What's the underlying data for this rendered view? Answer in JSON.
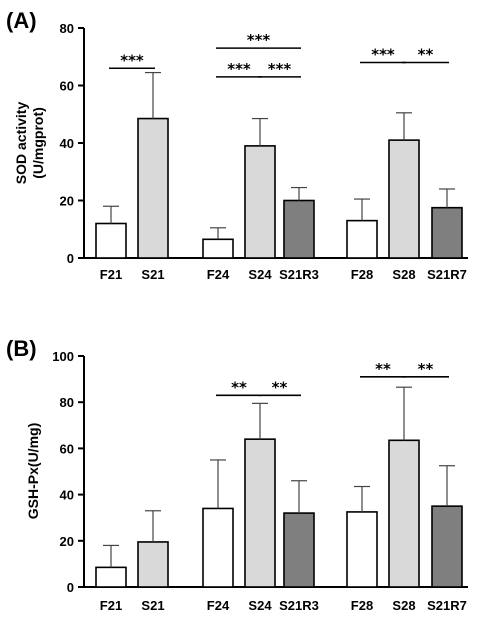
{
  "chart_data": [
    {
      "type": "bar",
      "panel_label": "(A)",
      "ylabel": "SOD activity (U/mgprot)",
      "ylabel_lines": [
        "SOD activity",
        "(U/mgprot)"
      ],
      "ylim": [
        0,
        80
      ],
      "yticks": [
        "0",
        "20",
        "40",
        "60",
        "80"
      ],
      "categories": [
        "F21",
        "S21",
        "F24",
        "S24",
        "S21R3",
        "F28",
        "S28",
        "S21R7"
      ],
      "values": [
        12,
        48.5,
        6.5,
        39,
        20,
        13,
        41,
        17.5
      ],
      "errors": [
        6,
        16,
        4,
        9.5,
        4.5,
        7.5,
        9.5,
        6.5
      ],
      "bar_colors": [
        "#ffffff",
        "#d9d9d9",
        "#ffffff",
        "#d9d9d9",
        "#7f7f7f",
        "#ffffff",
        "#d9d9d9",
        "#7f7f7f"
      ],
      "significance": [
        {
          "from": 0,
          "to": 1,
          "label": "***",
          "y": 66
        },
        {
          "from": 2,
          "to": 4,
          "label": "***",
          "y": 73
        },
        {
          "from": 2,
          "to": 3,
          "label": "***",
          "y": 63
        },
        {
          "from": 3,
          "to": 4,
          "label": "***",
          "y": 63
        },
        {
          "from": 5,
          "to": 6,
          "label": "***",
          "y": 68
        },
        {
          "from": 6,
          "to": 7,
          "label": "**",
          "y": 68
        }
      ]
    },
    {
      "type": "bar",
      "panel_label": "(B)",
      "ylabel": "GSH-Px(U/mg)",
      "ylabel_lines": [
        "GSH-Px(U/mg)"
      ],
      "ylim": [
        0,
        100
      ],
      "yticks": [
        "0",
        "20",
        "40",
        "60",
        "80",
        "100"
      ],
      "categories": [
        "F21",
        "S21",
        "F24",
        "S24",
        "S21R3",
        "F28",
        "S28",
        "S21R7"
      ],
      "values": [
        8.5,
        19.5,
        34,
        64,
        32,
        32.5,
        63.5,
        35
      ],
      "errors": [
        9.5,
        13.5,
        21,
        15.5,
        14,
        11,
        23,
        17.5
      ],
      "bar_colors": [
        "#ffffff",
        "#d9d9d9",
        "#ffffff",
        "#d9d9d9",
        "#7f7f7f",
        "#ffffff",
        "#d9d9d9",
        "#7f7f7f"
      ],
      "significance": [
        {
          "from": 2,
          "to": 3,
          "label": "**",
          "y": 83
        },
        {
          "from": 3,
          "to": 4,
          "label": "**",
          "y": 83
        },
        {
          "from": 5,
          "to": 6,
          "label": "**",
          "y": 91
        },
        {
          "from": 6,
          "to": 7,
          "label": "**",
          "y": 91
        }
      ]
    }
  ]
}
